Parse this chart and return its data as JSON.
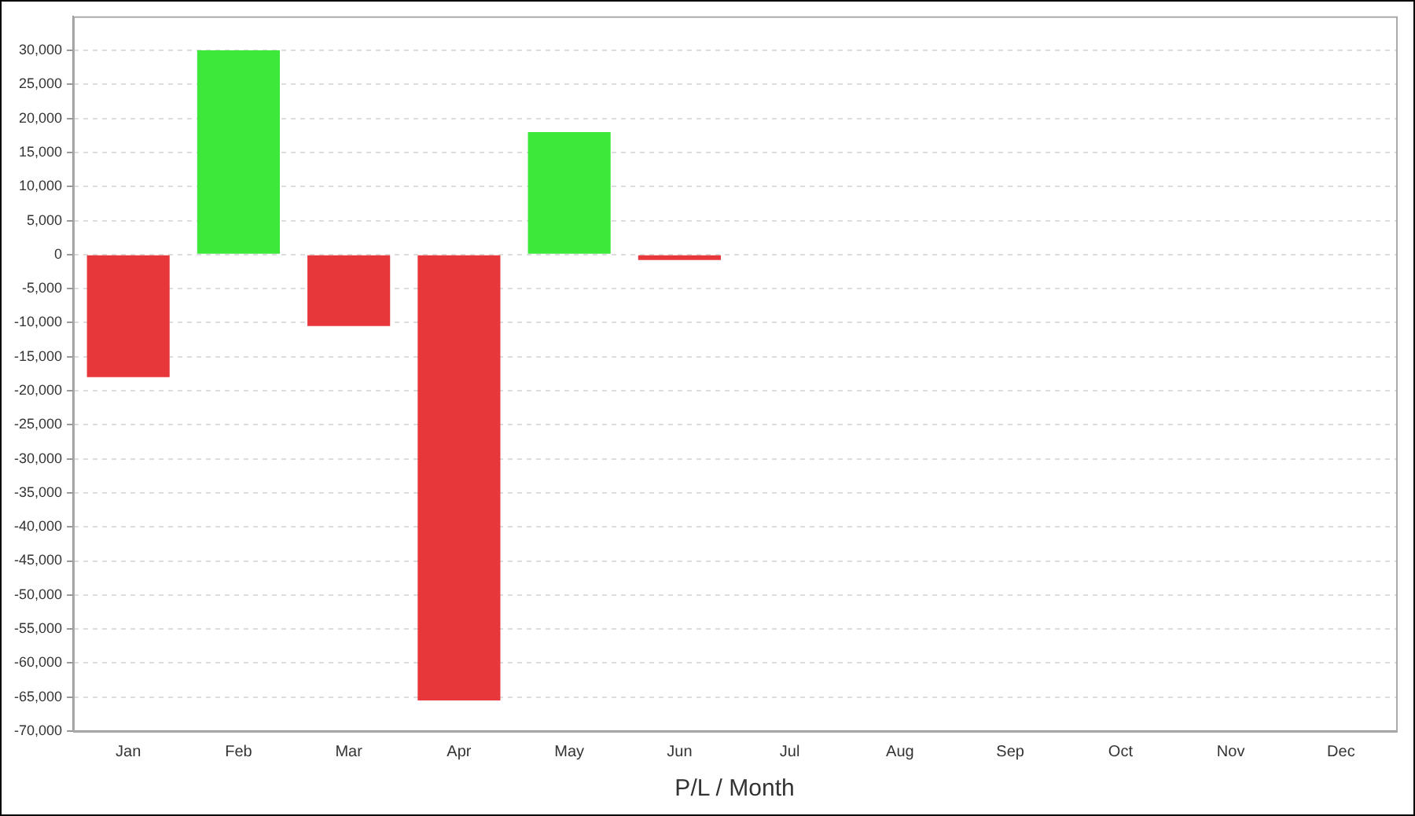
{
  "chart_data": {
    "type": "bar",
    "xlabel": "P/L / Month",
    "categories": [
      "Jan",
      "Feb",
      "Mar",
      "Apr",
      "May",
      "Jun",
      "Jul",
      "Aug",
      "Sep",
      "Oct",
      "Nov",
      "Dec"
    ],
    "values": [
      -18000,
      30000,
      -10500,
      -65500,
      18000,
      -800,
      null,
      null,
      null,
      null,
      null,
      null
    ],
    "colors": [
      "#e8373b",
      "#3ee83b",
      "#e8373b",
      "#e8373b",
      "#3ee83b",
      "#e8373b",
      "#e8373b",
      "#e8373b",
      "#e8373b",
      "#e8373b",
      "#e8373b",
      "#e8373b"
    ],
    "ylim": [
      -70000,
      35000
    ],
    "yticks": [
      {
        "value": -70000,
        "label": "-70,000"
      },
      {
        "value": -65000,
        "label": "-65,000"
      },
      {
        "value": -60000,
        "label": "-60,000"
      },
      {
        "value": -55000,
        "label": "-55,000"
      },
      {
        "value": -50000,
        "label": "-50,000"
      },
      {
        "value": -45000,
        "label": "-45,000"
      },
      {
        "value": -40000,
        "label": "-40,000"
      },
      {
        "value": -35000,
        "label": "-35,000"
      },
      {
        "value": -30000,
        "label": "-30,000"
      },
      {
        "value": -25000,
        "label": "-25,000"
      },
      {
        "value": -20000,
        "label": "-20,000"
      },
      {
        "value": -15000,
        "label": "-15,000"
      },
      {
        "value": -10000,
        "label": "-10,000"
      },
      {
        "value": -5000,
        "label": "-5,000"
      },
      0,
      {
        "value": 5000,
        "label": "5,000"
      },
      {
        "value": 10000,
        "label": "10,000"
      },
      {
        "value": 15000,
        "label": "15,000"
      },
      {
        "value": 20000,
        "label": "20,000"
      },
      {
        "value": 25000,
        "label": "25,000"
      },
      {
        "value": 30000,
        "label": "30,000"
      }
    ],
    "grid": "y"
  }
}
